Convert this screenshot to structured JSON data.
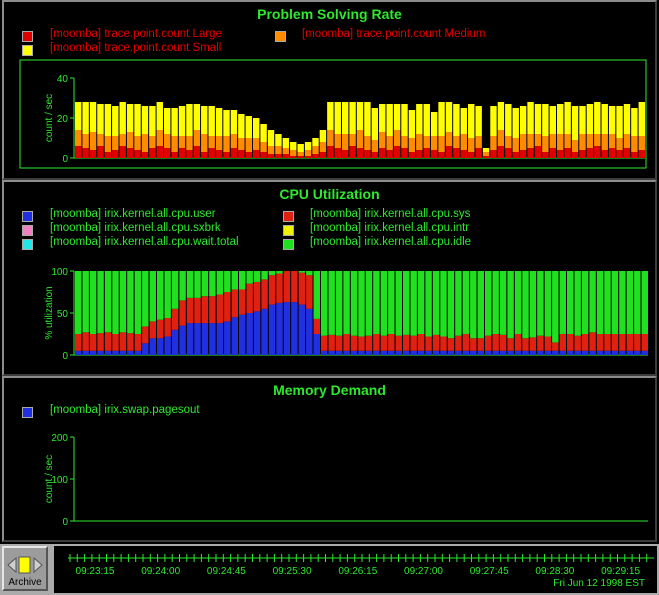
{
  "panels": {
    "problem": {
      "title": "Problem Solving Rate",
      "legend": [
        {
          "label": "[moomba] trace.point.count Large",
          "color": "#e00000"
        },
        {
          "label": "[moomba] trace.point.count Medium",
          "color": "#ff8c00"
        },
        {
          "label": "[moomba] trace.point.count Small",
          "color": "#ffff00"
        }
      ],
      "ylabel": "count / sec"
    },
    "cpu": {
      "title": "CPU Utilization",
      "legend": [
        {
          "label": "[moomba] irix.kernel.all.cpu.user",
          "color": "#2030e0"
        },
        {
          "label": "[moomba] irix.kernel.all.cpu.sys",
          "color": "#e02010"
        },
        {
          "label": "[moomba] irix.kernel.all.cpu.sxbrk",
          "color": "#f080c0"
        },
        {
          "label": "[moomba] irix.kernel.all.cpu.intr",
          "color": "#f0f000"
        },
        {
          "label": "[moomba] irix.kernel.all.cpu.wait.total",
          "color": "#20e8e8"
        },
        {
          "label": "[moomba] irix.kernel.all.cpu.idle",
          "color": "#20e020"
        }
      ],
      "ylabel": "% utilization"
    },
    "memory": {
      "title": "Memory Demand",
      "legend": [
        {
          "label": "[moomba] irix.swap.pagesout",
          "color": "#2030e0"
        }
      ],
      "ylabel": "count / sec"
    }
  },
  "chart_data": [
    {
      "type": "bar",
      "title": "Problem Solving Rate",
      "ylabel": "count / sec",
      "ylim": [
        0,
        40
      ],
      "yticks": [
        0,
        20,
        40
      ],
      "stacked": true,
      "series": [
        {
          "name": "[moomba] trace.point.count Large",
          "values": [
            6,
            5,
            4,
            6,
            3,
            4,
            6,
            5,
            4,
            3,
            5,
            6,
            5,
            3,
            5,
            4,
            6,
            3,
            5,
            4,
            3,
            5,
            4,
            3,
            4,
            3,
            2,
            2,
            2,
            1,
            1,
            1,
            2,
            3,
            6,
            5,
            4,
            6,
            5,
            4,
            3,
            5,
            4,
            6,
            5,
            3,
            4,
            5,
            4,
            3,
            6,
            5,
            4,
            3,
            5,
            1,
            4,
            6,
            5,
            3,
            4,
            5,
            6,
            3,
            5,
            4,
            5,
            3,
            4,
            5,
            6,
            4,
            5,
            4,
            5,
            3,
            4
          ]
        },
        {
          "name": "[moomba] trace.point.count Medium",
          "values": [
            8,
            7,
            9,
            6,
            8,
            7,
            6,
            8,
            7,
            9,
            6,
            8,
            7,
            8,
            6,
            7,
            8,
            9,
            6,
            7,
            8,
            7,
            6,
            7,
            6,
            5,
            4,
            4,
            3,
            3,
            2,
            3,
            4,
            5,
            8,
            7,
            8,
            6,
            9,
            7,
            6,
            8,
            7,
            8,
            6,
            7,
            8,
            6,
            7,
            8,
            7,
            6,
            8,
            7,
            6,
            2,
            7,
            8,
            6,
            7,
            8,
            7,
            6,
            8,
            7,
            8,
            7,
            6,
            8,
            7,
            6,
            8,
            7,
            6,
            7,
            8,
            7
          ]
        },
        {
          "name": "[moomba] trace.point.count Small",
          "values": [
            14,
            16,
            15,
            15,
            16,
            15,
            16,
            14,
            16,
            14,
            15,
            14,
            13,
            14,
            15,
            16,
            13,
            14,
            15,
            14,
            13,
            12,
            12,
            11,
            10,
            9,
            8,
            6,
            5,
            4,
            4,
            4,
            4,
            6,
            14,
            16,
            16,
            16,
            14,
            17,
            16,
            14,
            16,
            13,
            16,
            14,
            15,
            16,
            12,
            17,
            15,
            16,
            13,
            17,
            15,
            2,
            15,
            14,
            16,
            15,
            14,
            16,
            15,
            16,
            14,
            15,
            16,
            17,
            14,
            15,
            16,
            15,
            14,
            16,
            15,
            14,
            17
          ]
        }
      ]
    },
    {
      "type": "bar",
      "title": "CPU Utilization",
      "ylabel": "% utilization",
      "ylim": [
        0,
        100
      ],
      "yticks": [
        0,
        50,
        100
      ],
      "stacked": true,
      "series": [
        {
          "name": "[moomba] irix.kernel.all.cpu.user",
          "values": [
            5,
            5,
            5,
            5,
            5,
            5,
            5,
            5,
            5,
            14,
            20,
            20,
            22,
            30,
            35,
            38,
            38,
            38,
            38,
            38,
            40,
            45,
            48,
            50,
            52,
            55,
            60,
            62,
            63,
            63,
            60,
            55,
            25,
            5,
            5,
            5,
            5,
            5,
            5,
            5,
            5,
            5,
            5,
            5,
            5,
            5,
            5,
            5,
            5,
            5,
            5,
            5,
            5,
            5,
            5,
            5,
            5,
            5,
            5,
            5,
            5,
            5,
            5,
            5,
            5,
            5,
            5,
            5,
            5,
            5,
            5,
            5,
            5,
            5,
            5,
            5,
            5
          ]
        },
        {
          "name": "[moomba] irix.kernel.all.cpu.sys",
          "values": [
            20,
            22,
            20,
            21,
            22,
            20,
            22,
            21,
            20,
            20,
            20,
            22,
            22,
            25,
            30,
            30,
            30,
            32,
            32,
            34,
            35,
            33,
            30,
            35,
            35,
            35,
            35,
            35,
            37,
            37,
            38,
            40,
            18,
            18,
            19,
            18,
            20,
            18,
            17,
            18,
            20,
            18,
            20,
            18,
            19,
            18,
            20,
            17,
            19,
            17,
            15,
            18,
            20,
            15,
            15,
            18,
            20,
            19,
            15,
            20,
            15,
            16,
            18,
            17,
            10,
            20,
            20,
            18,
            20,
            22,
            20,
            20,
            20,
            20,
            20,
            20,
            20
          ]
        },
        {
          "name": "[moomba] irix.kernel.all.cpu.sxbrk",
          "values": [
            0,
            0,
            0,
            0,
            0,
            0,
            0,
            0,
            0,
            0,
            0,
            0,
            0,
            0,
            0,
            0,
            0,
            0,
            0,
            0,
            0,
            0,
            0,
            0,
            0,
            0,
            0,
            0,
            0,
            0,
            0,
            0,
            0,
            0,
            0,
            0,
            0,
            0,
            0,
            0,
            0,
            0,
            0,
            0,
            0,
            0,
            0,
            0,
            0,
            0,
            0,
            0,
            0,
            0,
            0,
            0,
            0,
            0,
            0,
            0,
            0,
            0,
            0,
            0,
            0,
            0,
            0,
            0,
            0,
            0,
            0,
            0,
            0,
            0,
            0,
            0,
            0
          ]
        },
        {
          "name": "[moomba] irix.kernel.all.cpu.intr",
          "values": [
            0,
            0,
            0,
            0,
            0,
            0,
            0,
            0,
            0,
            0,
            0,
            0,
            0,
            0,
            0,
            0,
            0,
            0,
            0,
            0,
            0,
            0,
            0,
            0,
            0,
            0,
            0,
            0,
            0,
            0,
            0,
            0,
            0,
            0,
            0,
            0,
            0,
            0,
            0,
            0,
            0,
            0,
            0,
            0,
            0,
            0,
            0,
            0,
            0,
            0,
            0,
            0,
            0,
            0,
            0,
            0,
            0,
            0,
            0,
            0,
            0,
            0,
            0,
            0,
            0,
            0,
            0,
            0,
            0,
            0,
            0,
            0,
            0,
            0,
            0,
            0,
            0
          ]
        },
        {
          "name": "[moomba] irix.kernel.all.cpu.wait.total",
          "values": [
            0,
            0,
            0,
            0,
            0,
            0,
            0,
            0,
            0,
            0,
            0,
            0,
            0,
            0,
            0,
            0,
            0,
            0,
            0,
            0,
            0,
            0,
            0,
            0,
            0,
            0,
            0,
            0,
            0,
            0,
            0,
            0,
            0,
            0,
            0,
            0,
            0,
            0,
            0,
            0,
            0,
            0,
            0,
            0,
            0,
            0,
            0,
            0,
            0,
            0,
            0,
            0,
            0,
            0,
            0,
            0,
            0,
            0,
            0,
            0,
            0,
            0,
            0,
            0,
            0,
            0,
            0,
            0,
            0,
            0,
            0,
            0,
            0,
            0,
            0,
            0,
            0
          ]
        },
        {
          "name": "[moomba] irix.kernel.all.cpu.idle",
          "values": [
            75,
            73,
            75,
            74,
            73,
            75,
            73,
            74,
            75,
            66,
            60,
            58,
            56,
            45,
            35,
            32,
            32,
            30,
            30,
            28,
            25,
            22,
            22,
            15,
            13,
            10,
            5,
            3,
            0,
            0,
            2,
            5,
            57,
            77,
            76,
            77,
            75,
            77,
            78,
            77,
            75,
            77,
            75,
            77,
            76,
            77,
            75,
            78,
            76,
            78,
            80,
            77,
            75,
            80,
            80,
            77,
            75,
            76,
            80,
            75,
            80,
            79,
            77,
            78,
            85,
            75,
            75,
            77,
            75,
            73,
            75,
            75,
            75,
            75,
            75,
            75,
            75
          ]
        }
      ]
    },
    {
      "type": "bar",
      "title": "Memory Demand",
      "ylabel": "count / sec",
      "ylim": [
        0,
        200
      ],
      "yticks": [
        0,
        100,
        200
      ],
      "series": [
        {
          "name": "[moomba] irix.swap.pagesout",
          "values": [
            0,
            0,
            0,
            0,
            0,
            0,
            0,
            0,
            0,
            0,
            0,
            0,
            0,
            0,
            0,
            0,
            0,
            0,
            0,
            0,
            0,
            0,
            0,
            0,
            0,
            0,
            0,
            0,
            0,
            0,
            0,
            0,
            0,
            0,
            0,
            0,
            0,
            0,
            0,
            0,
            0,
            0,
            0,
            0,
            0,
            0,
            0,
            0,
            0,
            0,
            0,
            0,
            0,
            0,
            0,
            0,
            0,
            0,
            0,
            0,
            0,
            0,
            0,
            0,
            0,
            0,
            0,
            0,
            0,
            0,
            0,
            0,
            0,
            0,
            0,
            0,
            0
          ]
        }
      ]
    }
  ],
  "time_axis": {
    "ticks": [
      "09:23:15",
      "09:24:00",
      "09:24:45",
      "09:25:30",
      "09:26:15",
      "09:27:00",
      "09:27:45",
      "09:28:30",
      "09:29:15"
    ],
    "date": "Fri Jun 12 1998 EST"
  },
  "archive": {
    "label": "Archive"
  }
}
